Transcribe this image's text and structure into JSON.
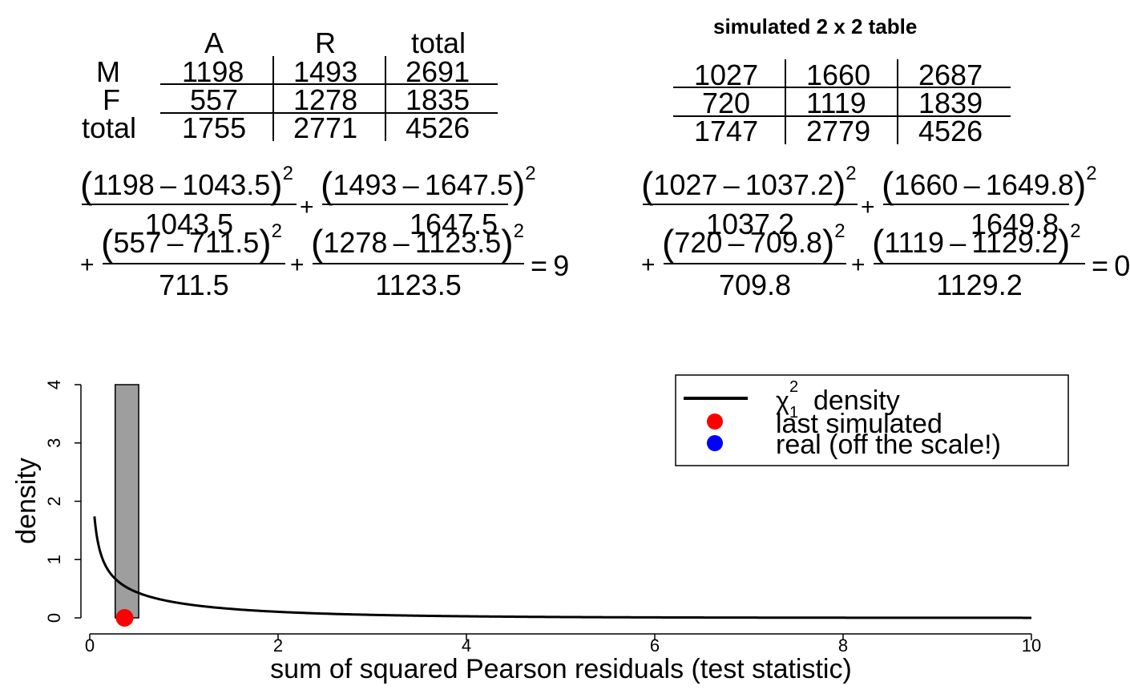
{
  "observed_table": {
    "col_headers": [
      "A",
      "R",
      "total"
    ],
    "row_headers": [
      "M",
      "F",
      "total"
    ],
    "cells": [
      [
        "1198",
        "1493",
        "2691"
      ],
      [
        "557",
        "1278",
        "1835"
      ],
      [
        "1755",
        "2771",
        "4526"
      ]
    ]
  },
  "observed_equation": {
    "terms": [
      {
        "observed": "1198",
        "expected": "1043.5"
      },
      {
        "observed": "1493",
        "expected": "1647.5"
      },
      {
        "observed": "557",
        "expected": "711.5"
      },
      {
        "observed": "1278",
        "expected": "1123.5"
      }
    ],
    "result_fragment": "9"
  },
  "simulated_table": {
    "title": "simulated 2 x 2 table",
    "cells": [
      [
        "1027",
        "1660",
        "2687"
      ],
      [
        "720",
        "1119",
        "1839"
      ],
      [
        "1747",
        "2779",
        "4526"
      ]
    ]
  },
  "simulated_equation": {
    "terms": [
      {
        "observed": "1027",
        "expected": "1037.2"
      },
      {
        "observed": "1660",
        "expected": "1649.8"
      },
      {
        "observed": "720",
        "expected": "709.8"
      },
      {
        "observed": "1119",
        "expected": "1129.2"
      }
    ],
    "result_fragment": "0"
  },
  "chart_data": {
    "type": "histogram",
    "xlabel": "sum of squared Pearson residuals (test statistic)",
    "ylabel": "density",
    "xlim": [
      0,
      10
    ],
    "ylim": [
      0,
      4
    ],
    "x_ticks": [
      "0",
      "2",
      "4",
      "6",
      "8",
      "10"
    ],
    "y_ticks": [
      "0",
      "1",
      "2",
      "3",
      "4"
    ],
    "bars": [
      {
        "x_start": 0.27,
        "x_end": 0.52,
        "density": 4.0
      }
    ],
    "density_curve": {
      "name": "χ² density",
      "df": 1
    },
    "points": [
      {
        "name": "last simulated",
        "x": 0.37,
        "y": 0.0,
        "color": "#ff0000"
      }
    ],
    "legend": {
      "position": "top-right",
      "entries": [
        {
          "label": "density",
          "symbol": "line",
          "color": "#000000"
        },
        {
          "label": "last simulated",
          "symbol": "point",
          "color": "#ff0000"
        },
        {
          "label": "real (off the scale!)",
          "symbol": "point",
          "color": "#0000ff"
        }
      ]
    },
    "colors": {
      "bar_fill": "#9e9e9e",
      "curve": "#000000"
    }
  }
}
